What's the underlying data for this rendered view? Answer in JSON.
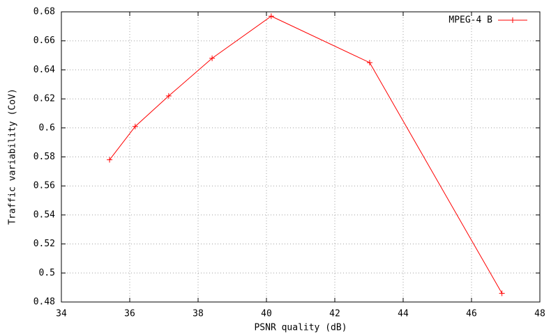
{
  "chart_data": {
    "type": "line",
    "xlabel": "PSNR quality (dB)",
    "ylabel": "Traffic variability (CoV)",
    "x": [
      35.41,
      36.16,
      37.14,
      38.41,
      40.14,
      43.02,
      46.89
    ],
    "series": [
      {
        "name": "MPEG-4 B",
        "color": "#ff0000",
        "values": [
          0.578,
          0.601,
          0.622,
          0.648,
          0.677,
          0.645,
          0.486
        ]
      }
    ],
    "xlim": [
      34,
      48
    ],
    "xticks": [
      34,
      36,
      38,
      40,
      42,
      44,
      46,
      48
    ],
    "ylim": [
      0.48,
      0.68
    ],
    "yticks": [
      0.48,
      0.5,
      0.52,
      0.54,
      0.56,
      0.58,
      0.6,
      0.62,
      0.64,
      0.66,
      0.68
    ],
    "grid": true,
    "legend": "upper right"
  }
}
